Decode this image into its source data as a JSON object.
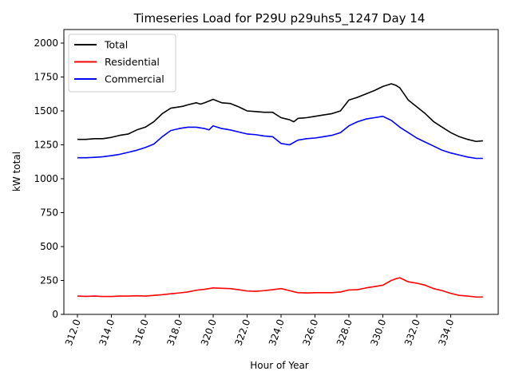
{
  "chart_data": {
    "type": "line",
    "title": "Timeseries Load for P29U p29uhs5_1247  Day 14",
    "xlabel": "Hour of Year",
    "ylabel": "kW total",
    "xlim": [
      311.2,
      336.8
    ],
    "ylim": [
      0,
      2100
    ],
    "xticks": [
      312.0,
      314.0,
      316.0,
      318.0,
      320.0,
      322.0,
      324.0,
      326.0,
      328.0,
      330.0,
      332.0,
      334.0
    ],
    "xtick_labels": [
      "312.0",
      "314.0",
      "316.0",
      "318.0",
      "320.0",
      "322.0",
      "324.0",
      "326.0",
      "328.0",
      "330.0",
      "332.0",
      "334.0"
    ],
    "yticks": [
      0,
      250,
      500,
      750,
      1000,
      1250,
      1500,
      1750,
      2000
    ],
    "ytick_labels": [
      "0",
      "250",
      "500",
      "750",
      "1000",
      "1250",
      "1500",
      "1750",
      "2000"
    ],
    "legend_position": "top-left",
    "grid": false,
    "series": [
      {
        "name": "Total",
        "color": "#000000",
        "x": [
          312.0,
          312.5,
          313.0,
          313.5,
          314.0,
          314.5,
          315.0,
          315.5,
          316.0,
          316.5,
          317.0,
          317.5,
          318.0,
          318.25,
          318.5,
          319.0,
          319.25,
          319.5,
          320.0,
          320.5,
          321.0,
          321.5,
          322.0,
          322.5,
          323.0,
          323.5,
          324.0,
          324.5,
          324.75,
          325.0,
          325.5,
          326.0,
          326.5,
          327.0,
          327.5,
          328.0,
          328.5,
          329.0,
          329.5,
          330.0,
          330.5,
          330.75,
          331.0,
          331.5,
          332.0,
          332.5,
          333.0,
          333.5,
          334.0,
          334.5,
          335.0,
          335.5,
          335.9
        ],
        "values": [
          1290,
          1290,
          1295,
          1295,
          1305,
          1320,
          1330,
          1360,
          1380,
          1420,
          1480,
          1520,
          1530,
          1535,
          1545,
          1560,
          1550,
          1560,
          1585,
          1560,
          1555,
          1530,
          1500,
          1495,
          1490,
          1490,
          1450,
          1435,
          1420,
          1445,
          1450,
          1460,
          1470,
          1480,
          1500,
          1580,
          1600,
          1625,
          1650,
          1680,
          1700,
          1690,
          1670,
          1580,
          1530,
          1480,
          1420,
          1380,
          1340,
          1310,
          1290,
          1275,
          1280
        ]
      },
      {
        "name": "Residential",
        "color": "#ff0000",
        "x": [
          312.0,
          312.5,
          313.0,
          313.5,
          314.0,
          314.5,
          315.0,
          315.5,
          316.0,
          316.5,
          317.0,
          317.5,
          318.0,
          318.5,
          319.0,
          319.5,
          320.0,
          320.5,
          321.0,
          321.5,
          322.0,
          322.5,
          323.0,
          323.5,
          324.0,
          324.5,
          325.0,
          325.5,
          326.0,
          326.5,
          327.0,
          327.5,
          328.0,
          328.5,
          329.0,
          329.5,
          330.0,
          330.5,
          330.75,
          331.0,
          331.5,
          332.0,
          332.5,
          333.0,
          333.5,
          334.0,
          334.5,
          335.0,
          335.5,
          335.9
        ],
        "values": [
          135,
          133,
          135,
          132,
          132,
          135,
          135,
          137,
          135,
          140,
          145,
          152,
          158,
          165,
          178,
          185,
          195,
          192,
          190,
          182,
          172,
          170,
          175,
          182,
          190,
          175,
          160,
          158,
          160,
          160,
          160,
          165,
          180,
          182,
          195,
          205,
          215,
          250,
          262,
          270,
          240,
          230,
          215,
          190,
          175,
          155,
          140,
          135,
          128,
          128
        ]
      },
      {
        "name": "Commercial",
        "color": "#0000ff",
        "x": [
          312.0,
          312.5,
          313.0,
          313.5,
          314.0,
          314.5,
          315.0,
          315.5,
          316.0,
          316.5,
          317.0,
          317.5,
          318.0,
          318.5,
          319.0,
          319.5,
          319.75,
          320.0,
          320.5,
          321.0,
          321.5,
          322.0,
          322.5,
          323.0,
          323.5,
          324.0,
          324.5,
          325.0,
          325.5,
          326.0,
          326.5,
          327.0,
          327.5,
          328.0,
          328.5,
          329.0,
          329.5,
          330.0,
          330.5,
          331.0,
          331.5,
          332.0,
          332.5,
          333.0,
          333.5,
          334.0,
          334.5,
          335.0,
          335.5,
          335.9
        ],
        "values": [
          1155,
          1155,
          1158,
          1162,
          1170,
          1180,
          1195,
          1210,
          1230,
          1255,
          1310,
          1355,
          1370,
          1380,
          1380,
          1370,
          1360,
          1390,
          1370,
          1360,
          1345,
          1330,
          1325,
          1315,
          1310,
          1260,
          1250,
          1285,
          1295,
          1300,
          1310,
          1320,
          1340,
          1390,
          1420,
          1440,
          1450,
          1460,
          1430,
          1380,
          1340,
          1300,
          1270,
          1240,
          1210,
          1190,
          1175,
          1160,
          1150,
          1150
        ]
      }
    ]
  }
}
